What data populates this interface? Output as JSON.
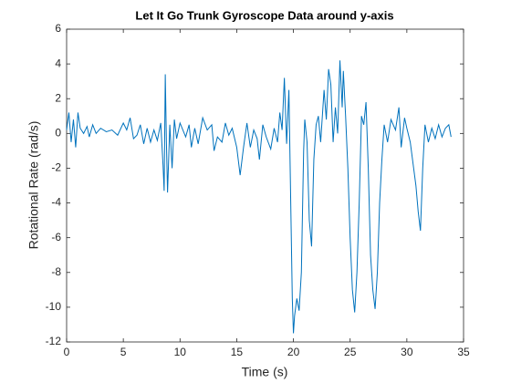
{
  "chart_data": {
    "type": "line",
    "title": "Let It Go Trunk Gyroscope Data around y-axis",
    "x_label": "Time (s)",
    "y_label": "Rotational Rate (rad/s)",
    "xlim": [
      0,
      35
    ],
    "ylim": [
      -12,
      6
    ],
    "xticks": [
      0,
      5,
      10,
      15,
      20,
      25,
      30,
      35
    ],
    "yticks": [
      -12,
      -10,
      -8,
      -6,
      -4,
      -2,
      0,
      2,
      4,
      6
    ],
    "series": [
      {
        "color": "#0072bd",
        "x": [
          0,
          0.2,
          0.4,
          0.6,
          0.8,
          1.0,
          1.2,
          1.5,
          1.8,
          2.0,
          2.3,
          2.6,
          3.0,
          3.5,
          4.0,
          4.5,
          5.0,
          5.3,
          5.6,
          5.9,
          6.2,
          6.5,
          6.8,
          7.1,
          7.4,
          7.7,
          8.0,
          8.3,
          8.5,
          8.6,
          8.7,
          8.8,
          8.9,
          9.1,
          9.3,
          9.5,
          9.7,
          10.0,
          10.5,
          10.8,
          11.0,
          11.3,
          11.6,
          12.0,
          12.4,
          12.8,
          13.0,
          13.3,
          13.7,
          14.0,
          14.3,
          14.6,
          15.0,
          15.3,
          15.6,
          15.9,
          16.2,
          16.5,
          16.8,
          17.0,
          17.3,
          17.6,
          18.0,
          18.3,
          18.6,
          18.8,
          19.0,
          19.2,
          19.4,
          19.6,
          19.8,
          19.9,
          20.0,
          20.1,
          20.3,
          20.5,
          20.7,
          20.9,
          21.0,
          21.2,
          21.4,
          21.6,
          21.8,
          22.0,
          22.2,
          22.4,
          22.7,
          22.9,
          23.1,
          23.3,
          23.5,
          23.7,
          23.9,
          24.1,
          24.3,
          24.4,
          24.6,
          24.8,
          25.0,
          25.2,
          25.4,
          25.6,
          25.8,
          26.0,
          26.2,
          26.4,
          26.6,
          26.8,
          27.0,
          27.2,
          27.4,
          27.6,
          27.8,
          28.0,
          28.3,
          28.6,
          29.0,
          29.3,
          29.5,
          29.8,
          30.0,
          30.3,
          30.6,
          30.8,
          31.0,
          31.2,
          31.4,
          31.6,
          31.9,
          32.2,
          32.5,
          32.8,
          33.1,
          33.4,
          33.7,
          33.9
        ],
        "values": [
          0.2,
          1.2,
          -0.5,
          0.8,
          -0.8,
          1.2,
          0.3,
          0,
          0.4,
          -0.2,
          0.5,
          0,
          0.3,
          0.1,
          0.2,
          -0.1,
          0.6,
          0.2,
          0.9,
          -0.3,
          -0.1,
          0.5,
          -0.6,
          0.3,
          -0.5,
          0.2,
          -0.4,
          0.6,
          -1.8,
          -3.3,
          3.4,
          -0.5,
          -3.4,
          0.5,
          -2.0,
          0.8,
          -0.3,
          0.6,
          -0.2,
          0.5,
          -0.8,
          0.3,
          -0.6,
          0.9,
          0.2,
          0.5,
          -1.0,
          -0.2,
          -0.5,
          0.6,
          -0.1,
          0.3,
          -0.8,
          -2.4,
          -0.8,
          0.6,
          -0.8,
          0.2,
          -0.3,
          -1.5,
          0.5,
          -0.2,
          -0.9,
          0.3,
          -0.5,
          1.2,
          0.2,
          3.2,
          -0.6,
          2.5,
          -5.5,
          -9.5,
          -11.5,
          -10.5,
          -9.5,
          -10.2,
          -8.0,
          -1.0,
          0.8,
          -0.5,
          -5.0,
          -6.5,
          -1.5,
          0.5,
          1.0,
          -0.5,
          2.5,
          0.8,
          3.7,
          2.8,
          -0.5,
          1.5,
          0,
          4.2,
          1.5,
          3.6,
          1.0,
          -2.0,
          -6.0,
          -9.0,
          -10.3,
          -8.0,
          -4.0,
          1.0,
          0.5,
          1.8,
          -2.0,
          -7.0,
          -9.0,
          -10.1,
          -8.0,
          -4.0,
          -1.5,
          0.5,
          -0.5,
          0.8,
          0.2,
          1.5,
          -0.8,
          0.9,
          0.3,
          -0.5,
          -2.0,
          -3.0,
          -4.5,
          -5.6,
          -2.0,
          0.5,
          -0.5,
          0.3,
          -0.3,
          0.5,
          -0.2,
          0.3,
          0.5,
          -0.2
        ]
      }
    ]
  }
}
